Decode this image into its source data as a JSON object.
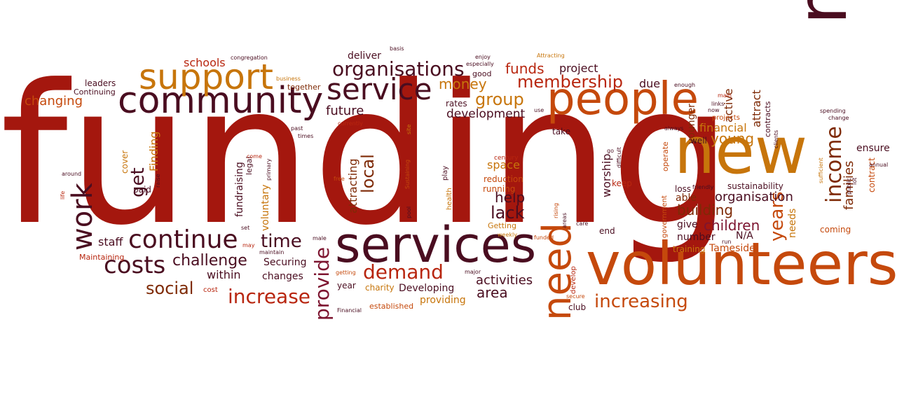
{
  "palette": {
    "dark_red": "#a4170e",
    "red": "#b8260f",
    "orange": "#c5490c",
    "amber": "#c7750b",
    "brown": "#7e2a06",
    "maroon": "#4a0d20",
    "plum": "#7d1530"
  },
  "words": [
    {
      "text": "funding",
      "color": "dark_red",
      "weight": 1.0
    },
    {
      "text": "members",
      "color": "maroon",
      "weight": 0.42
    },
    {
      "text": "new",
      "color": "amber",
      "weight": 0.38
    },
    {
      "text": "volunteers",
      "color": "orange",
      "weight": 0.36
    },
    {
      "text": "services",
      "color": "maroon",
      "weight": 0.32
    },
    {
      "text": "people",
      "color": "orange",
      "weight": 0.3
    },
    {
      "text": "community",
      "color": "maroon",
      "weight": 0.26
    },
    {
      "text": "need",
      "color": "orange",
      "weight": 0.24
    },
    {
      "text": "support",
      "color": "amber",
      "weight": 0.2
    },
    {
      "text": "service",
      "color": "maroon",
      "weight": 0.17
    },
    {
      "text": "continue",
      "color": "maroon",
      "weight": 0.15
    },
    {
      "text": "work",
      "color": "maroon",
      "weight": 0.15
    },
    {
      "text": "costs",
      "color": "maroon",
      "weight": 0.14
    },
    {
      "text": "income",
      "color": "brown",
      "weight": 0.14
    },
    {
      "text": "organisations",
      "color": "maroon",
      "weight": 0.12
    },
    {
      "text": "provide",
      "color": "plum",
      "weight": 0.12
    },
    {
      "text": "increase",
      "color": "red",
      "weight": 0.12
    },
    {
      "text": "demand",
      "color": "red",
      "weight": 0.12
    },
    {
      "text": "increasing",
      "color": "orange",
      "weight": 0.12
    },
    {
      "text": "years",
      "color": "orange",
      "weight": 0.12
    },
    {
      "text": "membership",
      "color": "red",
      "weight": 0.1
    },
    {
      "text": "time",
      "color": "maroon",
      "weight": 0.1
    },
    {
      "text": "lack",
      "color": "maroon",
      "weight": 0.1
    },
    {
      "text": "challenge",
      "color": "maroon",
      "weight": 0.09
    },
    {
      "text": "social",
      "color": "brown",
      "weight": 0.09
    },
    {
      "text": "group",
      "color": "amber",
      "weight": 0.09
    },
    {
      "text": "funds",
      "color": "red",
      "weight": 0.09
    },
    {
      "text": "local",
      "color": "brown",
      "weight": 0.09
    },
    {
      "text": "get",
      "color": "maroon",
      "weight": 0.09
    },
    {
      "text": "area",
      "color": "maroon",
      "weight": 0.08
    },
    {
      "text": "help",
      "color": "maroon",
      "weight": 0.08
    },
    {
      "text": "building",
      "color": "brown",
      "weight": 0.08
    },
    {
      "text": "children",
      "color": "plum",
      "weight": 0.08
    },
    {
      "text": "young",
      "color": "amber",
      "weight": 0.08
    },
    {
      "text": "families",
      "color": "brown",
      "weight": 0.07
    },
    {
      "text": "money",
      "color": "amber",
      "weight": 0.07
    },
    {
      "text": "organisation",
      "color": "maroon",
      "weight": 0.07
    },
    {
      "text": "activities",
      "color": "maroon",
      "weight": 0.07
    },
    {
      "text": "attracting",
      "color": "brown",
      "weight": 0.07
    },
    {
      "text": "younger",
      "color": "brown",
      "weight": 0.07
    },
    {
      "text": "attract",
      "color": "brown",
      "weight": 0.06
    },
    {
      "text": "changing",
      "color": "orange",
      "weight": 0.06
    },
    {
      "text": "project",
      "color": "maroon",
      "weight": 0.06
    },
    {
      "text": "development",
      "color": "maroon",
      "weight": 0.06
    },
    {
      "text": "future",
      "color": "maroon",
      "weight": 0.06
    },
    {
      "text": "financial",
      "color": "amber",
      "weight": 0.06
    },
    {
      "text": "worship",
      "color": "maroon",
      "weight": 0.06
    },
    {
      "text": "schools",
      "color": "red",
      "weight": 0.05
    },
    {
      "text": "staff",
      "color": "maroon",
      "weight": 0.05
    },
    {
      "text": "within",
      "color": "maroon",
      "weight": 0.05
    },
    {
      "text": "Finding",
      "color": "amber",
      "weight": 0.05
    },
    {
      "text": "due",
      "color": "maroon",
      "weight": 0.05
    },
    {
      "text": "active",
      "color": "brown",
      "weight": 0.05
    },
    {
      "text": "space",
      "color": "amber",
      "weight": 0.05
    },
    {
      "text": "Securing",
      "color": "maroon",
      "weight": 0.05
    },
    {
      "text": "changes",
      "color": "maroon",
      "weight": 0.05
    },
    {
      "text": "Developing",
      "color": "maroon",
      "weight": 0.05
    },
    {
      "text": "providing",
      "color": "amber",
      "weight": 0.05
    },
    {
      "text": "Tameside",
      "color": "orange",
      "weight": 0.05
    },
    {
      "text": "N/A",
      "color": "maroon",
      "weight": 0.05
    },
    {
      "text": "needs",
      "color": "amber",
      "weight": 0.05
    },
    {
      "text": "able",
      "color": "brown",
      "weight": 0.05
    },
    {
      "text": "give",
      "color": "maroon",
      "weight": 0.05
    },
    {
      "text": "number",
      "color": "maroon",
      "weight": 0.05
    },
    {
      "text": "deliver",
      "color": "maroon",
      "weight": 0.05
    },
    {
      "text": "ensure",
      "color": "maroon",
      "weight": 0.05
    },
    {
      "text": "contract",
      "color": "orange",
      "weight": 0.04
    },
    {
      "text": "sustainability",
      "color": "maroon",
      "weight": 0.04
    },
    {
      "text": "fundraising",
      "color": "maroon",
      "weight": 0.04
    },
    {
      "text": "voluntary",
      "color": "amber",
      "weight": 0.04
    },
    {
      "text": "coming",
      "color": "orange",
      "weight": 0.04
    },
    {
      "text": "keep",
      "color": "red",
      "weight": 0.04
    },
    {
      "text": "reduction",
      "color": "orange",
      "weight": 0.04
    },
    {
      "text": "running",
      "color": "orange",
      "weight": 0.04
    },
    {
      "text": "rates",
      "color": "maroon",
      "weight": 0.04
    },
    {
      "text": "take",
      "color": "maroon",
      "weight": 0.04
    },
    {
      "text": "well",
      "color": "maroon",
      "weight": 0.04
    },
    {
      "text": "loss",
      "color": "maroon",
      "weight": 0.04
    },
    {
      "text": "training",
      "color": "amber",
      "weight": 0.04
    },
    {
      "text": "year",
      "color": "maroon",
      "weight": 0.04
    },
    {
      "text": "club",
      "color": "maroon",
      "weight": 0.04
    },
    {
      "text": "end",
      "color": "maroon",
      "weight": 0.04
    },
    {
      "text": "cover",
      "color": "amber",
      "weight": 0.04
    },
    {
      "text": "paid",
      "color": "maroon",
      "weight": 0.04
    },
    {
      "text": "leaders",
      "color": "maroon",
      "weight": 0.03
    },
    {
      "text": "Continuing",
      "color": "maroon",
      "weight": 0.03
    },
    {
      "text": "Maintaining",
      "color": "red",
      "weight": 0.03
    },
    {
      "text": "contracts",
      "color": "maroon",
      "weight": 0.03
    },
    {
      "text": "good",
      "color": "maroon",
      "weight": 0.03
    },
    {
      "text": "together",
      "color": "brown",
      "weight": 0.03
    },
    {
      "text": "charity",
      "color": "amber",
      "weight": 0.03
    },
    {
      "text": "established",
      "color": "orange",
      "weight": 0.03
    },
    {
      "text": "Getting",
      "color": "amber",
      "weight": 0.03
    },
    {
      "text": "government",
      "color": "orange",
      "weight": 0.03
    },
    {
      "text": "operate",
      "color": "orange",
      "weight": 0.03
    },
    {
      "text": "legal",
      "color": "maroon",
      "weight": 0.03
    },
    {
      "text": "play",
      "color": "maroon",
      "weight": 0.03
    },
    {
      "text": "health",
      "color": "amber",
      "weight": 0.03
    },
    {
      "text": "cost",
      "color": "red",
      "weight": 0.03
    },
    {
      "text": "develop",
      "color": "red",
      "weight": 0.03
    },
    {
      "text": "projects",
      "color": "orange",
      "weight": 0.03
    },
    {
      "text": "century",
      "color": "red",
      "weight": 0.02
    },
    {
      "text": "congregation",
      "color": "maroon",
      "weight": 0.02
    },
    {
      "text": "basis",
      "color": "maroon",
      "weight": 0.02
    },
    {
      "text": "enjoy",
      "color": "maroon",
      "weight": 0.02
    },
    {
      "text": "especially",
      "color": "maroon",
      "weight": 0.02
    },
    {
      "text": "Attracting",
      "color": "amber",
      "weight": 0.02
    },
    {
      "text": "business",
      "color": "amber",
      "weight": 0.02
    },
    {
      "text": "currently",
      "color": "red",
      "weight": 0.02
    },
    {
      "text": "past",
      "color": "maroon",
      "weight": 0.02
    },
    {
      "text": "times",
      "color": "maroon",
      "weight": 0.02
    },
    {
      "text": "site",
      "color": "amber",
      "weight": 0.02
    },
    {
      "text": "enough",
      "color": "maroon",
      "weight": 0.02
    },
    {
      "text": "main",
      "color": "red",
      "weight": 0.02
    },
    {
      "text": "links",
      "color": "maroon",
      "weight": 0.02
    },
    {
      "text": "now",
      "color": "maroon",
      "weight": 0.02
    },
    {
      "text": "use",
      "color": "maroon",
      "weight": 0.02
    },
    {
      "text": "always",
      "color": "maroon",
      "weight": 0.02
    },
    {
      "text": "clients",
      "color": "maroon",
      "weight": 0.02
    },
    {
      "text": "spending",
      "color": "maroon",
      "weight": 0.02
    },
    {
      "text": "change",
      "color": "maroon",
      "weight": 0.02
    },
    {
      "text": "annual",
      "color": "maroon",
      "weight": 0.02
    },
    {
      "text": "sufficient",
      "color": "amber",
      "weight": 0.02
    },
    {
      "text": "public",
      "color": "maroon",
      "weight": 0.02
    },
    {
      "text": "lot",
      "color": "maroon",
      "weight": 0.02
    },
    {
      "text": "friendly",
      "color": "maroon",
      "weight": 0.02
    },
    {
      "text": "around",
      "color": "maroon",
      "weight": 0.02
    },
    {
      "text": "life",
      "color": "red",
      "weight": 0.02
    },
    {
      "text": "raise",
      "color": "maroon",
      "weight": 0.02
    },
    {
      "text": "come",
      "color": "red",
      "weight": 0.02
    },
    {
      "text": "primary",
      "color": "maroon",
      "weight": 0.02
    },
    {
      "text": "free",
      "color": "orange",
      "weight": 0.02
    },
    {
      "text": "Sustaining",
      "color": "orange",
      "weight": 0.02
    },
    {
      "text": "pool",
      "color": "maroon",
      "weight": 0.02
    },
    {
      "text": "go",
      "color": "maroon",
      "weight": 0.02
    },
    {
      "text": "difficult",
      "color": "maroon",
      "weight": 0.02
    },
    {
      "text": "rising",
      "color": "orange",
      "weight": 0.02
    },
    {
      "text": "areas",
      "color": "maroon",
      "weight": 0.02
    },
    {
      "text": "care",
      "color": "maroon",
      "weight": 0.02
    },
    {
      "text": "weekly",
      "color": "amber",
      "weight": 0.02
    },
    {
      "text": "funded",
      "color": "orange",
      "weight": 0.02
    },
    {
      "text": "secure",
      "color": "orange",
      "weight": 0.02
    },
    {
      "text": "major",
      "color": "maroon",
      "weight": 0.02
    },
    {
      "text": "set",
      "color": "maroon",
      "weight": 0.02
    },
    {
      "text": "may",
      "color": "red",
      "weight": 0.02
    },
    {
      "text": "male",
      "color": "maroon",
      "weight": 0.02
    },
    {
      "text": "getting",
      "color": "orange",
      "weight": 0.02
    },
    {
      "text": "Financial",
      "color": "maroon",
      "weight": 0.02
    },
    {
      "text": "run",
      "color": "maroon",
      "weight": 0.02
    },
    {
      "text": "maintain",
      "color": "maroon",
      "weight": 0.02
    }
  ]
}
